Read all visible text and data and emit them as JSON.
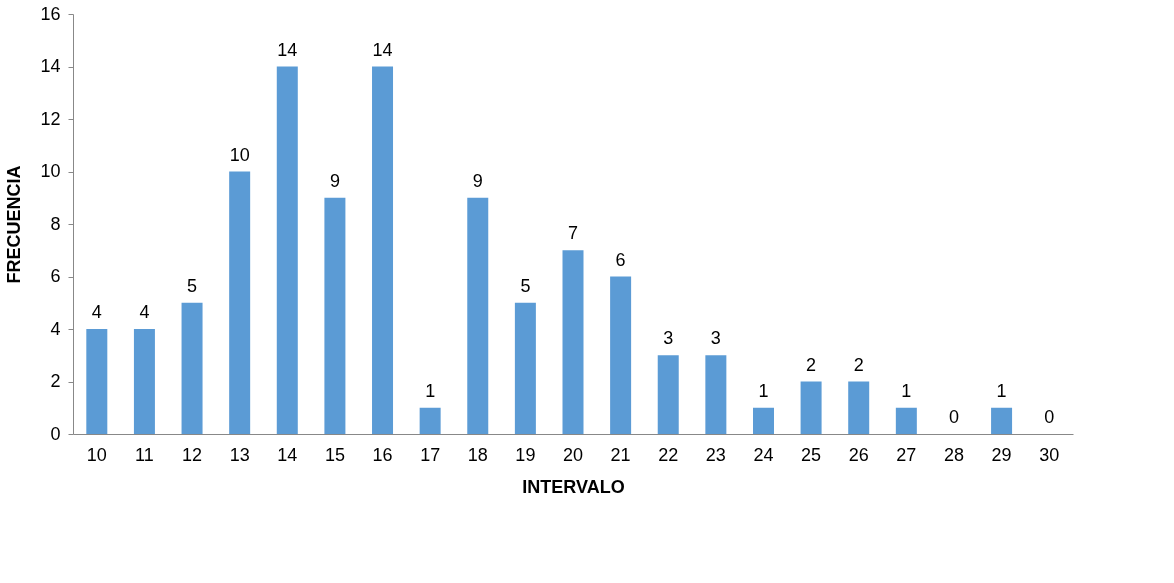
{
  "chart_data": {
    "type": "bar",
    "xlabel": "INTERVALO",
    "ylabel": "FRECUENCIA",
    "categories": [
      "10",
      "11",
      "12",
      "13",
      "14",
      "15",
      "16",
      "17",
      "18",
      "19",
      "20",
      "21",
      "22",
      "23",
      "24",
      "25",
      "26",
      "27",
      "28",
      "29",
      "30"
    ],
    "values": [
      4,
      4,
      5,
      10,
      14,
      9,
      14,
      1,
      9,
      5,
      7,
      6,
      3,
      3,
      1,
      2,
      2,
      1,
      0,
      1,
      0
    ],
    "color": "#5b9bd5",
    "ylim": [
      0,
      16
    ],
    "yticks": [
      0,
      2,
      4,
      6,
      8,
      10,
      12,
      14,
      16
    ],
    "grid": false,
    "data_labels": true
  }
}
